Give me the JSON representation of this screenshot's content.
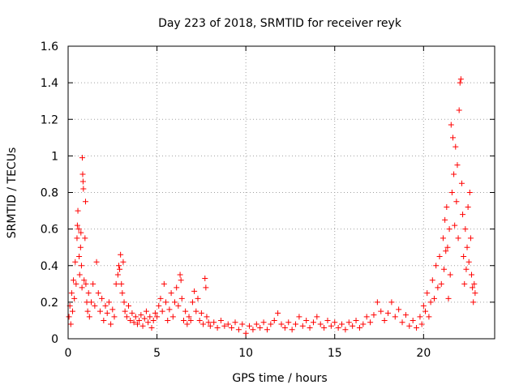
{
  "chart_data": {
    "type": "scatter",
    "title": "Day 223 of 2018, SRMTID for receiver reyk",
    "xlabel": "GPS time / hours",
    "ylabel": "SRMTID / TECUs",
    "xlim": [
      0,
      24
    ],
    "ylim": [
      0,
      1.6
    ],
    "xticks": [
      0,
      5,
      10,
      15,
      20
    ],
    "xtick_labels": [
      "0",
      "5",
      "10",
      "15",
      "20"
    ],
    "yticks": [
      0,
      0.2,
      0.4,
      0.6,
      0.8,
      1.0,
      1.2,
      1.4,
      1.6
    ],
    "ytick_labels": [
      "0",
      "0.2",
      "0.4",
      "0.6",
      "0.8",
      "1",
      "1.2",
      "1.4",
      "1.6"
    ],
    "grid": true,
    "marker": "+",
    "color": "#ff0000",
    "series": [
      {
        "name": "SRMTID",
        "points": [
          [
            0.05,
            0.12
          ],
          [
            0.1,
            0.18
          ],
          [
            0.15,
            0.08
          ],
          [
            0.2,
            0.25
          ],
          [
            0.25,
            0.15
          ],
          [
            0.3,
            0.32
          ],
          [
            0.35,
            0.22
          ],
          [
            0.4,
            0.42
          ],
          [
            0.45,
            0.3
          ],
          [
            0.5,
            0.55
          ],
          [
            0.52,
            0.62
          ],
          [
            0.55,
            0.7
          ],
          [
            0.6,
            0.6
          ],
          [
            0.62,
            0.45
          ],
          [
            0.65,
            0.35
          ],
          [
            0.7,
            0.5
          ],
          [
            0.72,
            0.58
          ],
          [
            0.75,
            0.4
          ],
          [
            0.78,
            0.28
          ],
          [
            0.8,
            0.99
          ],
          [
            0.82,
            0.9
          ],
          [
            0.84,
            0.86
          ],
          [
            0.86,
            0.82
          ],
          [
            0.9,
            0.32
          ],
          [
            0.95,
            0.55
          ],
          [
            0.98,
            0.75
          ],
          [
            1.0,
            0.3
          ],
          [
            1.05,
            0.2
          ],
          [
            1.1,
            0.15
          ],
          [
            1.15,
            0.25
          ],
          [
            1.2,
            0.12
          ],
          [
            1.3,
            0.2
          ],
          [
            1.4,
            0.3
          ],
          [
            1.5,
            0.18
          ],
          [
            1.6,
            0.42
          ],
          [
            1.7,
            0.25
          ],
          [
            1.8,
            0.15
          ],
          [
            1.9,
            0.22
          ],
          [
            2.0,
            0.1
          ],
          [
            2.1,
            0.18
          ],
          [
            2.2,
            0.14
          ],
          [
            2.3,
            0.2
          ],
          [
            2.4,
            0.08
          ],
          [
            2.5,
            0.16
          ],
          [
            2.6,
            0.12
          ],
          [
            2.7,
            0.3
          ],
          [
            2.8,
            0.35
          ],
          [
            2.85,
            0.4
          ],
          [
            2.9,
            0.38
          ],
          [
            2.95,
            0.46
          ],
          [
            3.0,
            0.3
          ],
          [
            3.05,
            0.25
          ],
          [
            3.1,
            0.42
          ],
          [
            3.15,
            0.2
          ],
          [
            3.2,
            0.15
          ],
          [
            3.3,
            0.12
          ],
          [
            3.4,
            0.18
          ],
          [
            3.5,
            0.1
          ],
          [
            3.6,
            0.14
          ],
          [
            3.7,
            0.09
          ],
          [
            3.8,
            0.12
          ],
          [
            3.9,
            0.08
          ],
          [
            4.0,
            0.1
          ],
          [
            4.1,
            0.13
          ],
          [
            4.2,
            0.07
          ],
          [
            4.3,
            0.11
          ],
          [
            4.4,
            0.15
          ],
          [
            4.5,
            0.09
          ],
          [
            4.6,
            0.12
          ],
          [
            4.7,
            0.06
          ],
          [
            4.8,
            0.1
          ],
          [
            4.9,
            0.14
          ],
          [
            5.0,
            0.12
          ],
          [
            5.1,
            0.18
          ],
          [
            5.2,
            0.22
          ],
          [
            5.3,
            0.15
          ],
          [
            5.4,
            0.3
          ],
          [
            5.5,
            0.2
          ],
          [
            5.6,
            0.1
          ],
          [
            5.7,
            0.16
          ],
          [
            5.8,
            0.25
          ],
          [
            5.9,
            0.12
          ],
          [
            6.0,
            0.2
          ],
          [
            6.1,
            0.28
          ],
          [
            6.2,
            0.18
          ],
          [
            6.3,
            0.35
          ],
          [
            6.35,
            0.32
          ],
          [
            6.4,
            0.22
          ],
          [
            6.5,
            0.1
          ],
          [
            6.6,
            0.15
          ],
          [
            6.7,
            0.08
          ],
          [
            6.8,
            0.12
          ],
          [
            6.9,
            0.1
          ],
          [
            7.0,
            0.2
          ],
          [
            7.1,
            0.26
          ],
          [
            7.2,
            0.15
          ],
          [
            7.3,
            0.22
          ],
          [
            7.4,
            0.1
          ],
          [
            7.5,
            0.14
          ],
          [
            7.6,
            0.08
          ],
          [
            7.7,
            0.33
          ],
          [
            7.75,
            0.28
          ],
          [
            7.8,
            0.12
          ],
          [
            7.9,
            0.09
          ],
          [
            8.0,
            0.07
          ],
          [
            8.2,
            0.09
          ],
          [
            8.4,
            0.06
          ],
          [
            8.6,
            0.1
          ],
          [
            8.8,
            0.07
          ],
          [
            9.0,
            0.08
          ],
          [
            9.2,
            0.06
          ],
          [
            9.4,
            0.09
          ],
          [
            9.6,
            0.05
          ],
          [
            9.8,
            0.08
          ],
          [
            10.0,
            0.03
          ],
          [
            10.2,
            0.07
          ],
          [
            10.4,
            0.05
          ],
          [
            10.6,
            0.08
          ],
          [
            10.8,
            0.06
          ],
          [
            11.0,
            0.09
          ],
          [
            11.2,
            0.05
          ],
          [
            11.4,
            0.08
          ],
          [
            11.6,
            0.1
          ],
          [
            11.8,
            0.14
          ],
          [
            12.0,
            0.08
          ],
          [
            12.2,
            0.06
          ],
          [
            12.4,
            0.09
          ],
          [
            12.6,
            0.05
          ],
          [
            12.8,
            0.08
          ],
          [
            13.0,
            0.12
          ],
          [
            13.2,
            0.07
          ],
          [
            13.4,
            0.1
          ],
          [
            13.6,
            0.06
          ],
          [
            13.8,
            0.09
          ],
          [
            14.0,
            0.12
          ],
          [
            14.2,
            0.08
          ],
          [
            14.4,
            0.06
          ],
          [
            14.6,
            0.1
          ],
          [
            14.8,
            0.07
          ],
          [
            15.0,
            0.09
          ],
          [
            15.2,
            0.06
          ],
          [
            15.4,
            0.08
          ],
          [
            15.6,
            0.05
          ],
          [
            15.8,
            0.09
          ],
          [
            16.0,
            0.07
          ],
          [
            16.2,
            0.1
          ],
          [
            16.4,
            0.06
          ],
          [
            16.6,
            0.08
          ],
          [
            16.8,
            0.12
          ],
          [
            17.0,
            0.09
          ],
          [
            17.2,
            0.13
          ],
          [
            17.4,
            0.2
          ],
          [
            17.6,
            0.15
          ],
          [
            17.8,
            0.1
          ],
          [
            18.0,
            0.14
          ],
          [
            18.2,
            0.2
          ],
          [
            18.4,
            0.12
          ],
          [
            18.6,
            0.16
          ],
          [
            18.8,
            0.09
          ],
          [
            19.0,
            0.13
          ],
          [
            19.2,
            0.07
          ],
          [
            19.4,
            0.1
          ],
          [
            19.6,
            0.06
          ],
          [
            19.8,
            0.12
          ],
          [
            19.9,
            0.08
          ],
          [
            20.0,
            0.18
          ],
          [
            20.1,
            0.15
          ],
          [
            20.2,
            0.25
          ],
          [
            20.3,
            0.12
          ],
          [
            20.4,
            0.2
          ],
          [
            20.5,
            0.32
          ],
          [
            20.6,
            0.22
          ],
          [
            20.7,
            0.4
          ],
          [
            20.8,
            0.28
          ],
          [
            20.9,
            0.45
          ],
          [
            21.0,
            0.3
          ],
          [
            21.1,
            0.55
          ],
          [
            21.15,
            0.38
          ],
          [
            21.2,
            0.65
          ],
          [
            21.25,
            0.48
          ],
          [
            21.3,
            0.72
          ],
          [
            21.35,
            0.5
          ],
          [
            21.4,
            0.22
          ],
          [
            21.45,
            0.6
          ],
          [
            21.5,
            0.35
          ],
          [
            21.55,
            1.17
          ],
          [
            21.6,
            0.8
          ],
          [
            21.65,
            1.1
          ],
          [
            21.7,
            0.9
          ],
          [
            21.75,
            0.62
          ],
          [
            21.8,
            1.05
          ],
          [
            21.85,
            0.75
          ],
          [
            21.9,
            0.95
          ],
          [
            21.95,
            0.55
          ],
          [
            22.0,
            1.25
          ],
          [
            22.05,
            1.4
          ],
          [
            22.1,
            1.42
          ],
          [
            22.15,
            0.85
          ],
          [
            22.2,
            0.68
          ],
          [
            22.25,
            0.45
          ],
          [
            22.3,
            0.3
          ],
          [
            22.35,
            0.6
          ],
          [
            22.4,
            0.38
          ],
          [
            22.45,
            0.5
          ],
          [
            22.5,
            0.72
          ],
          [
            22.55,
            0.42
          ],
          [
            22.6,
            0.8
          ],
          [
            22.65,
            0.55
          ],
          [
            22.7,
            0.35
          ],
          [
            22.75,
            0.28
          ],
          [
            22.8,
            0.2
          ],
          [
            22.85,
            0.3
          ],
          [
            22.9,
            0.25
          ]
        ]
      }
    ]
  }
}
